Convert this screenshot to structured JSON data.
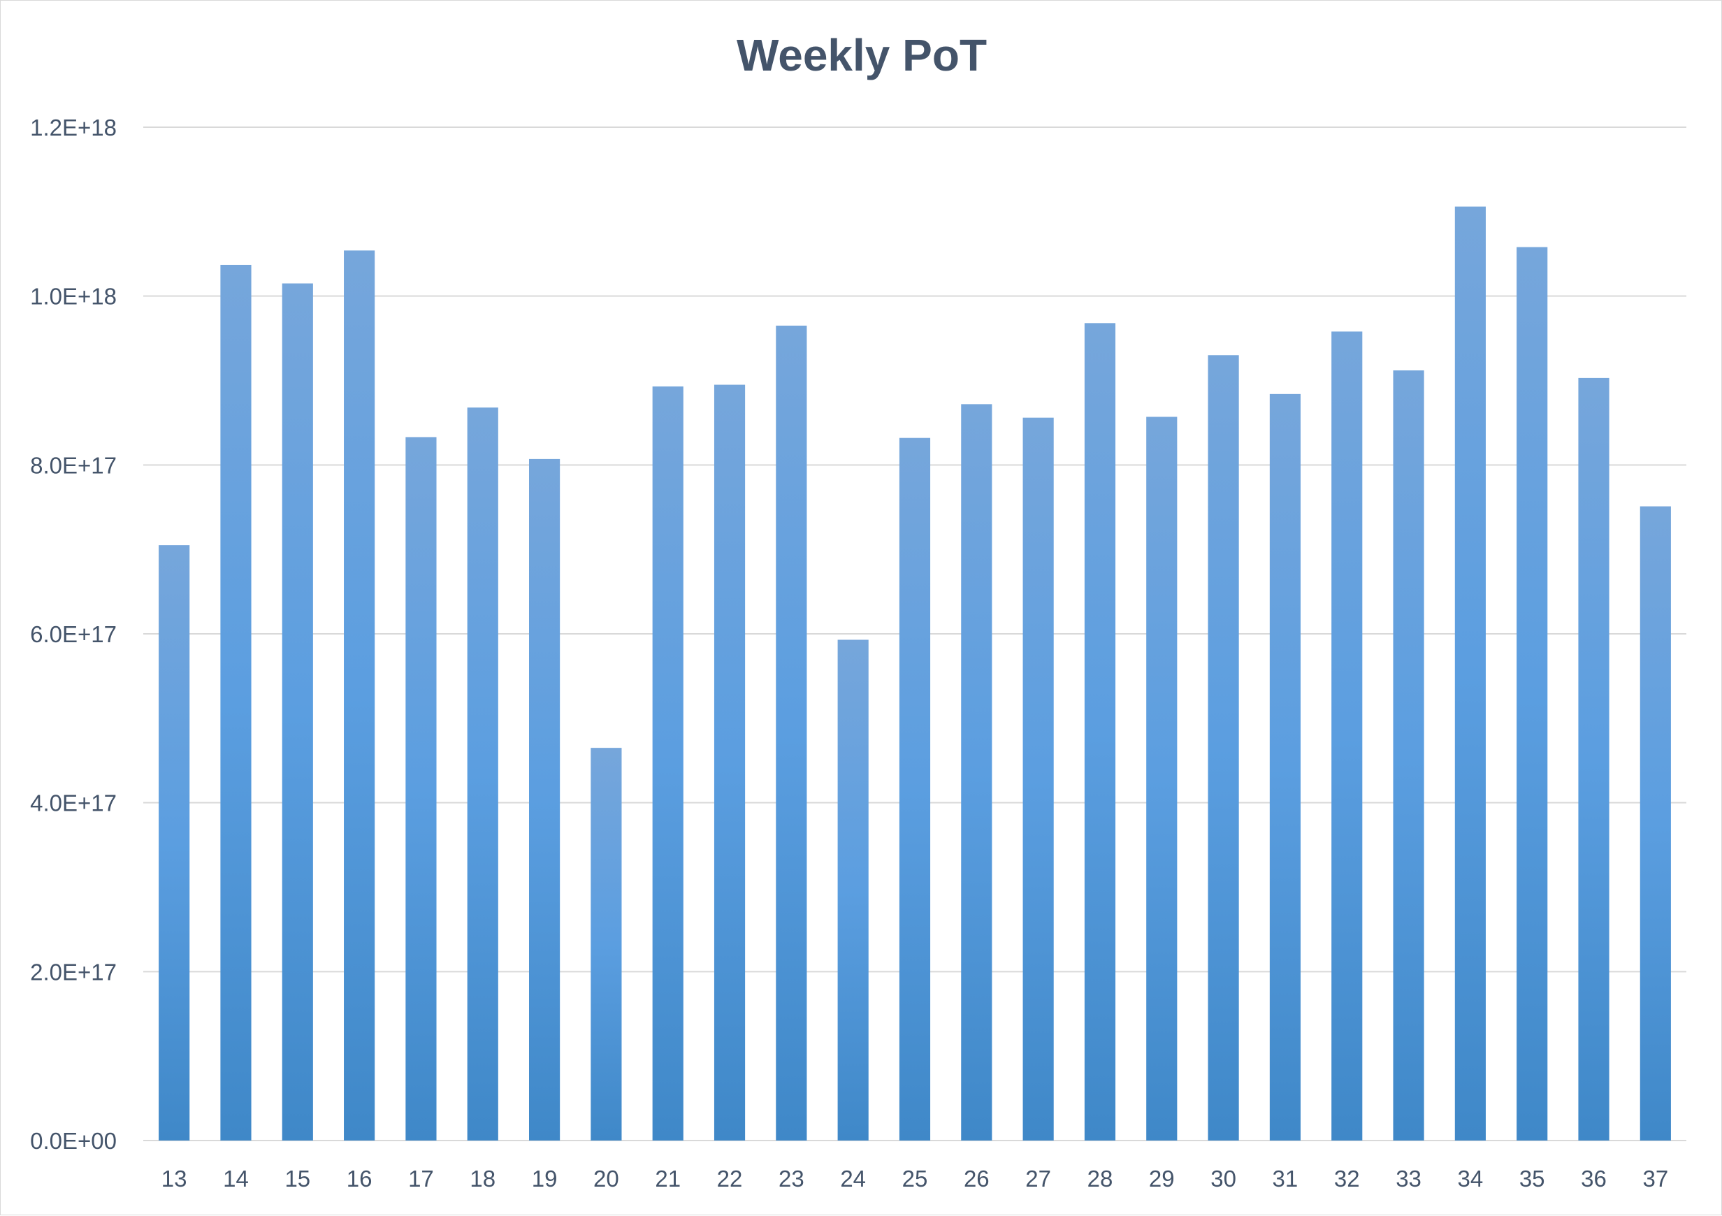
{
  "chart_data": {
    "type": "bar",
    "title": "Weekly PoT",
    "xlabel": "",
    "ylabel": "",
    "categories": [
      "13",
      "14",
      "15",
      "16",
      "17",
      "18",
      "19",
      "20",
      "21",
      "22",
      "23",
      "24",
      "25",
      "26",
      "27",
      "28",
      "29",
      "30",
      "31",
      "32",
      "33",
      "34",
      "35",
      "36",
      "37"
    ],
    "values": [
      7.05e+17,
      1.037e+18,
      1.015e+18,
      1.054e+18,
      8.33e+17,
      8.68e+17,
      8.07e+17,
      4.65e+17,
      8.93e+17,
      8.95e+17,
      9.65e+17,
      5.93e+17,
      8.32e+17,
      8.72e+17,
      8.56e+17,
      9.68e+17,
      8.57e+17,
      9.3e+17,
      8.84e+17,
      9.58e+17,
      9.12e+17,
      1.106e+18,
      1.058e+18,
      9.03e+17,
      7.51e+17
    ],
    "ylim": [
      0,
      1.2e+18
    ],
    "yticks": [
      0,
      2e+17,
      4e+17,
      6e+17,
      8e+17,
      1e+18,
      1.2e+18
    ],
    "ytick_labels": [
      "0.0E+00",
      "2.0E+17",
      "4.0E+17",
      "6.0E+17",
      "8.0E+17",
      "1.0E+18",
      "1.2E+18"
    ],
    "grid": true,
    "legend": "none",
    "colors": {
      "bar_top": "#76a6db",
      "bar_mid": "#5b9ee0",
      "bar_bottom": "#3f88c8",
      "grid": "#d9d9d9",
      "text": "#44546a"
    }
  }
}
